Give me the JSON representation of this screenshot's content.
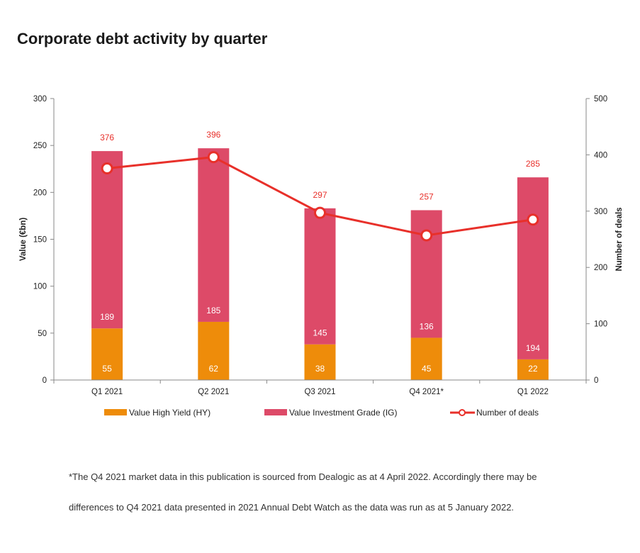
{
  "title": "Corporate debt activity by quarter",
  "chart_data": {
    "type": "bar",
    "stacked": true,
    "categories": [
      "Q1 2021",
      "Q2 2021",
      "Q3 2021",
      "Q4 2021*",
      "Q1 2022"
    ],
    "series": [
      {
        "name": "Value High Yield (HY)",
        "type": "bar",
        "axis": "left",
        "color": "#ee8c0a",
        "values": [
          55,
          62,
          38,
          45,
          22
        ]
      },
      {
        "name": "Value Investment Grade (IG)",
        "type": "bar",
        "axis": "left",
        "color": "#dd4a68",
        "values": [
          189,
          185,
          145,
          136,
          194
        ]
      },
      {
        "name": "Number of deals",
        "type": "line",
        "axis": "right",
        "color": "#e8302a",
        "values": [
          376,
          396,
          297,
          257,
          285
        ]
      }
    ],
    "ylabel": "Value (€bn)",
    "ylabel_right": "Number of deals",
    "ylim": [
      0,
      300
    ],
    "ylim_right": [
      0,
      500
    ],
    "yticks": [
      0,
      50,
      100,
      150,
      200,
      250,
      300
    ],
    "yticks_right": [
      0,
      100,
      200,
      300,
      400,
      500
    ],
    "grid": false,
    "legend_position": "bottom"
  },
  "footnote": {
    "line1": "*The Q4 2021 market data in this publication is sourced from Dealogic as at 4 April 2022. Accordingly there may be",
    "line2": "differences to Q4 2021 data presented in 2021 Annual Debt Watch as the data was run as at 5 January 2022."
  }
}
